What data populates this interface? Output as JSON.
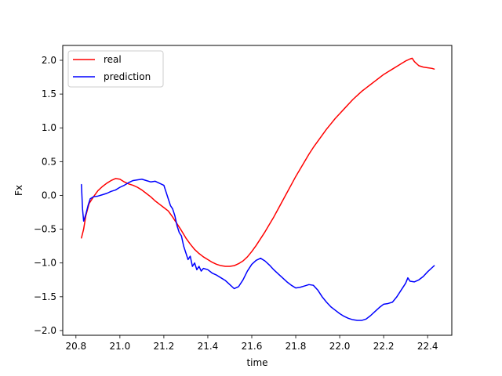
{
  "chart_data": {
    "type": "line",
    "title": "",
    "xlabel": "time",
    "ylabel": "Fx",
    "xlim": [
      20.74,
      22.51
    ],
    "ylim": [
      -2.07,
      2.22
    ],
    "xticks": [
      20.8,
      21.0,
      21.2,
      21.4,
      21.6,
      21.8,
      22.0,
      22.2,
      22.4
    ],
    "xtick_labels": [
      "20.8",
      "21.0",
      "21.2",
      "21.4",
      "21.6",
      "21.8",
      "22.0",
      "22.2",
      "22.4"
    ],
    "yticks": [
      -2.0,
      -1.5,
      -1.0,
      -0.5,
      0.0,
      0.5,
      1.0,
      1.5,
      2.0
    ],
    "ytick_labels": [
      "−2.0",
      "−1.5",
      "−1.0",
      "−0.5",
      "0.0",
      "0.5",
      "1.0",
      "1.5",
      "2.0"
    ],
    "grid": false,
    "legend_position": "top-left",
    "series": [
      {
        "name": "real",
        "color": "#ff0000",
        "points": [
          [
            20.825,
            -0.63
          ],
          [
            20.835,
            -0.5
          ],
          [
            20.845,
            -0.3
          ],
          [
            20.86,
            -0.12
          ],
          [
            20.88,
            -0.02
          ],
          [
            20.9,
            0.07
          ],
          [
            20.92,
            0.13
          ],
          [
            20.94,
            0.18
          ],
          [
            20.96,
            0.22
          ],
          [
            20.98,
            0.25
          ],
          [
            21.0,
            0.24
          ],
          [
            21.02,
            0.2
          ],
          [
            21.04,
            0.17
          ],
          [
            21.06,
            0.15
          ],
          [
            21.08,
            0.12
          ],
          [
            21.1,
            0.08
          ],
          [
            21.12,
            0.03
          ],
          [
            21.14,
            -0.02
          ],
          [
            21.16,
            -0.08
          ],
          [
            21.18,
            -0.13
          ],
          [
            21.2,
            -0.18
          ],
          [
            21.22,
            -0.23
          ],
          [
            21.24,
            -0.32
          ],
          [
            21.26,
            -0.42
          ],
          [
            21.28,
            -0.52
          ],
          [
            21.3,
            -0.63
          ],
          [
            21.32,
            -0.72
          ],
          [
            21.34,
            -0.8
          ],
          [
            21.36,
            -0.86
          ],
          [
            21.38,
            -0.91
          ],
          [
            21.4,
            -0.95
          ],
          [
            21.42,
            -0.99
          ],
          [
            21.44,
            -1.02
          ],
          [
            21.46,
            -1.04
          ],
          [
            21.48,
            -1.05
          ],
          [
            21.5,
            -1.05
          ],
          [
            21.52,
            -1.04
          ],
          [
            21.54,
            -1.01
          ],
          [
            21.56,
            -0.97
          ],
          [
            21.58,
            -0.91
          ],
          [
            21.6,
            -0.83
          ],
          [
            21.62,
            -0.74
          ],
          [
            21.64,
            -0.64
          ],
          [
            21.66,
            -0.54
          ],
          [
            21.68,
            -0.43
          ],
          [
            21.7,
            -0.32
          ],
          [
            21.72,
            -0.2
          ],
          [
            21.74,
            -0.08
          ],
          [
            21.76,
            0.04
          ],
          [
            21.78,
            0.16
          ],
          [
            21.8,
            0.28
          ],
          [
            21.82,
            0.39
          ],
          [
            21.84,
            0.5
          ],
          [
            21.86,
            0.61
          ],
          [
            21.88,
            0.71
          ],
          [
            21.9,
            0.8
          ],
          [
            21.92,
            0.89
          ],
          [
            21.94,
            0.98
          ],
          [
            21.96,
            1.06
          ],
          [
            21.98,
            1.14
          ],
          [
            22.0,
            1.21
          ],
          [
            22.02,
            1.28
          ],
          [
            22.04,
            1.35
          ],
          [
            22.06,
            1.42
          ],
          [
            22.08,
            1.48
          ],
          [
            22.1,
            1.54
          ],
          [
            22.12,
            1.59
          ],
          [
            22.14,
            1.64
          ],
          [
            22.16,
            1.69
          ],
          [
            22.18,
            1.74
          ],
          [
            22.2,
            1.79
          ],
          [
            22.22,
            1.83
          ],
          [
            22.24,
            1.87
          ],
          [
            22.26,
            1.91
          ],
          [
            22.28,
            1.95
          ],
          [
            22.3,
            1.99
          ],
          [
            22.32,
            2.02
          ],
          [
            22.33,
            2.03
          ],
          [
            22.34,
            1.98
          ],
          [
            22.36,
            1.92
          ],
          [
            22.38,
            1.9
          ],
          [
            22.4,
            1.89
          ],
          [
            22.42,
            1.88
          ],
          [
            22.43,
            1.87
          ]
        ]
      },
      {
        "name": "prediction",
        "color": "#0000ff",
        "points": [
          [
            20.825,
            0.16
          ],
          [
            20.83,
            -0.2
          ],
          [
            20.835,
            -0.38
          ],
          [
            20.845,
            -0.28
          ],
          [
            20.855,
            -0.15
          ],
          [
            20.865,
            -0.05
          ],
          [
            20.88,
            -0.02
          ],
          [
            20.9,
            -0.01
          ],
          [
            20.92,
            0.01
          ],
          [
            20.94,
            0.03
          ],
          [
            20.96,
            0.06
          ],
          [
            20.98,
            0.08
          ],
          [
            21.0,
            0.12
          ],
          [
            21.02,
            0.15
          ],
          [
            21.04,
            0.19
          ],
          [
            21.06,
            0.22
          ],
          [
            21.08,
            0.23
          ],
          [
            21.1,
            0.24
          ],
          [
            21.12,
            0.22
          ],
          [
            21.14,
            0.2
          ],
          [
            21.16,
            0.21
          ],
          [
            21.18,
            0.18
          ],
          [
            21.2,
            0.15
          ],
          [
            21.21,
            0.05
          ],
          [
            21.22,
            -0.05
          ],
          [
            21.23,
            -0.15
          ],
          [
            21.24,
            -0.2
          ],
          [
            21.25,
            -0.3
          ],
          [
            21.26,
            -0.45
          ],
          [
            21.27,
            -0.55
          ],
          [
            21.28,
            -0.6
          ],
          [
            21.29,
            -0.75
          ],
          [
            21.3,
            -0.85
          ],
          [
            21.31,
            -0.95
          ],
          [
            21.32,
            -0.9
          ],
          [
            21.33,
            -1.05
          ],
          [
            21.34,
            -1.0
          ],
          [
            21.35,
            -1.1
          ],
          [
            21.36,
            -1.05
          ],
          [
            21.37,
            -1.12
          ],
          [
            21.38,
            -1.08
          ],
          [
            21.4,
            -1.1
          ],
          [
            21.42,
            -1.15
          ],
          [
            21.44,
            -1.18
          ],
          [
            21.46,
            -1.22
          ],
          [
            21.48,
            -1.26
          ],
          [
            21.5,
            -1.32
          ],
          [
            21.52,
            -1.38
          ],
          [
            21.54,
            -1.35
          ],
          [
            21.56,
            -1.25
          ],
          [
            21.58,
            -1.12
          ],
          [
            21.6,
            -1.02
          ],
          [
            21.62,
            -0.96
          ],
          [
            21.64,
            -0.93
          ],
          [
            21.66,
            -0.97
          ],
          [
            21.68,
            -1.03
          ],
          [
            21.7,
            -1.1
          ],
          [
            21.72,
            -1.16
          ],
          [
            21.74,
            -1.22
          ],
          [
            21.76,
            -1.28
          ],
          [
            21.78,
            -1.33
          ],
          [
            21.8,
            -1.37
          ],
          [
            21.82,
            -1.36
          ],
          [
            21.84,
            -1.34
          ],
          [
            21.86,
            -1.32
          ],
          [
            21.88,
            -1.33
          ],
          [
            21.9,
            -1.4
          ],
          [
            21.92,
            -1.5
          ],
          [
            21.94,
            -1.58
          ],
          [
            21.96,
            -1.65
          ],
          [
            21.98,
            -1.7
          ],
          [
            22.0,
            -1.75
          ],
          [
            22.02,
            -1.79
          ],
          [
            22.04,
            -1.82
          ],
          [
            22.06,
            -1.84
          ],
          [
            22.08,
            -1.85
          ],
          [
            22.1,
            -1.85
          ],
          [
            22.12,
            -1.83
          ],
          [
            22.14,
            -1.78
          ],
          [
            22.16,
            -1.72
          ],
          [
            22.18,
            -1.66
          ],
          [
            22.2,
            -1.61
          ],
          [
            22.22,
            -1.6
          ],
          [
            22.24,
            -1.58
          ],
          [
            22.26,
            -1.5
          ],
          [
            22.28,
            -1.4
          ],
          [
            22.3,
            -1.3
          ],
          [
            22.31,
            -1.22
          ],
          [
            22.32,
            -1.27
          ],
          [
            22.34,
            -1.28
          ],
          [
            22.36,
            -1.25
          ],
          [
            22.38,
            -1.2
          ],
          [
            22.4,
            -1.13
          ],
          [
            22.42,
            -1.07
          ],
          [
            22.43,
            -1.04
          ]
        ]
      }
    ]
  }
}
